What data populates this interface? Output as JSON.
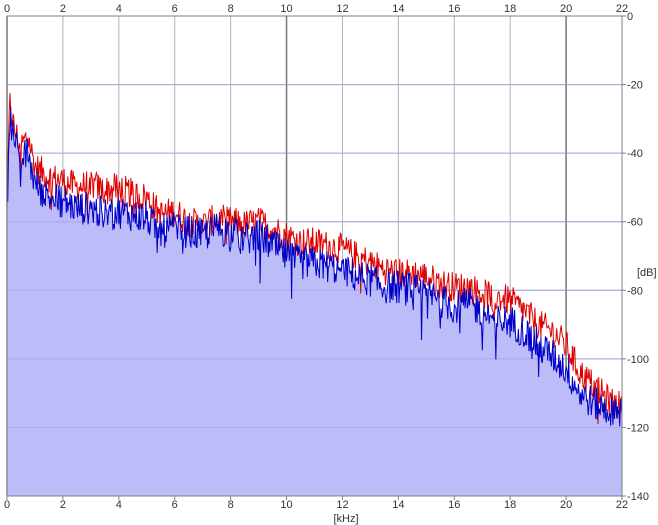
{
  "chart_data": {
    "type": "area",
    "xlabel": "[kHz]",
    "ylabel": "[dB]",
    "xlim": [
      0,
      22
    ],
    "ylim": [
      -140,
      0
    ],
    "x_ticks": [
      "0",
      "2",
      "4",
      "6",
      "8",
      "10",
      "12",
      "14",
      "16",
      "18",
      "20",
      "22"
    ],
    "y_ticks": [
      "0",
      "-20",
      "-40",
      "-60",
      "-80",
      "-100",
      "-120",
      "-140"
    ],
    "grid": true,
    "colors": {
      "fill": "#bcbcf8",
      "fill_line": "#9a9af0",
      "series_red": "#e00000",
      "series_blue": "#0000c8",
      "grid": "#b4b4b4",
      "grid_major": "#808080",
      "axis": "#808080"
    },
    "series": [
      {
        "color": "red",
        "x": [
          0,
          0.1,
          0.25,
          0.5,
          0.75,
          1,
          1.5,
          2,
          2.5,
          3,
          3.5,
          4,
          4.5,
          5,
          5.5,
          6,
          6.5,
          7,
          7.5,
          8,
          8.5,
          9,
          9.5,
          10,
          10.5,
          11,
          11.5,
          12,
          12.5,
          13,
          13.5,
          14,
          14.5,
          15,
          15.5,
          16,
          16.5,
          17,
          17.5,
          18,
          18.5,
          19,
          19.5,
          20,
          20.5,
          21,
          21.5,
          22
        ],
        "y": [
          -55,
          -25,
          -33,
          -38,
          -35,
          -44,
          -47,
          -48,
          -50,
          -49,
          -51,
          -50,
          -52,
          -53,
          -58,
          -57,
          -60,
          -61,
          -59,
          -60,
          -61,
          -60,
          -62,
          -64,
          -66,
          -66,
          -67,
          -68,
          -70,
          -72,
          -74,
          -75,
          -75,
          -76,
          -78,
          -79,
          -79,
          -81,
          -82,
          -83,
          -86,
          -90,
          -92,
          -96,
          -104,
          -108,
          -112,
          -114
        ]
      },
      {
        "color": "blue",
        "x": [
          0,
          0.1,
          0.25,
          0.5,
          0.75,
          1,
          1.5,
          2,
          2.5,
          3,
          3.5,
          4,
          4.5,
          5,
          5.5,
          6,
          6.5,
          7,
          7.5,
          8,
          8.5,
          9,
          9.5,
          10,
          10.5,
          11,
          11.5,
          12,
          12.5,
          13,
          13.5,
          14,
          14.5,
          15,
          15.5,
          16,
          16.5,
          17,
          17.5,
          18,
          18.5,
          19,
          19.5,
          20,
          20.5,
          21,
          21.5,
          22
        ],
        "y": [
          -57,
          -28,
          -36,
          -42,
          -40,
          -49,
          -53,
          -54,
          -56,
          -56,
          -58,
          -57,
          -58,
          -59,
          -63,
          -62,
          -63,
          -64,
          -62,
          -63,
          -65,
          -64,
          -67,
          -70,
          -72,
          -72,
          -73,
          -74,
          -76,
          -77,
          -79,
          -79,
          -80,
          -81,
          -83,
          -85,
          -84,
          -86,
          -89,
          -89,
          -92,
          -96,
          -99,
          -103,
          -110,
          -113,
          -115,
          -116
        ]
      }
    ]
  }
}
